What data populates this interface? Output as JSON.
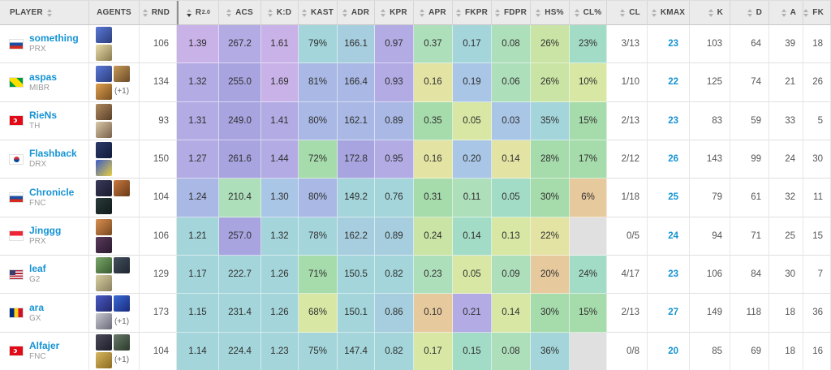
{
  "colors": {
    "link_blue": "#1593d4",
    "header_bg": "#ebebeb",
    "header_text": "#4a4a4a"
  },
  "palette": {
    "pu1": "#c8b2e8",
    "pu2": "#b2abe4",
    "pu3": "#a8a4e0",
    "bl1": "#a9b8e4",
    "bl2": "#a9c6e6",
    "cy1": "#a3d5da",
    "cy2": "#a7cede",
    "tg": "#a3dcc6",
    "gr1": "#a6dcab",
    "gr2": "#aedfbb",
    "yg1": "#c9e4a4",
    "yg2": "#d8e7a4",
    "ye": "#e3e3a4",
    "or": "#e7c99e",
    "gy": "#e0e0e0"
  },
  "table": {
    "columns": [
      {
        "key": "player",
        "label": "PLAYER",
        "carets": "after"
      },
      {
        "key": "agents",
        "label": "AGENTS",
        "carets": "none"
      },
      {
        "key": "rnd",
        "label": "RND",
        "carets": "before"
      },
      {
        "key": "r2",
        "label": "R",
        "sup": "2.0",
        "carets": "before",
        "active": true
      },
      {
        "key": "acs",
        "label": "ACS",
        "carets": "before"
      },
      {
        "key": "kd",
        "label": "K:D",
        "carets": "before"
      },
      {
        "key": "kast",
        "label": "KAST",
        "carets": "before"
      },
      {
        "key": "adr",
        "label": "ADR",
        "carets": "before"
      },
      {
        "key": "kpr",
        "label": "KPR",
        "carets": "before"
      },
      {
        "key": "apr",
        "label": "APR",
        "carets": "before"
      },
      {
        "key": "fkpr",
        "label": "FKPR",
        "carets": "before"
      },
      {
        "key": "fdpr",
        "label": "FDPR",
        "carets": "before"
      },
      {
        "key": "hs",
        "label": "HS%",
        "carets": "before"
      },
      {
        "key": "clp",
        "label": "CL%",
        "carets": "before"
      },
      {
        "key": "cl",
        "label": "CL",
        "carets": "before"
      },
      {
        "key": "kmax",
        "label": "KMAX",
        "carets": "before"
      },
      {
        "key": "k",
        "label": "K",
        "carets": "before"
      },
      {
        "key": "d",
        "label": "D",
        "carets": "before"
      },
      {
        "key": "a",
        "label": "A",
        "carets": "before"
      },
      {
        "key": "fk",
        "label": "FK",
        "carets": "before"
      }
    ],
    "rows": [
      {
        "player": "something",
        "team": "PRX",
        "flag": "ru",
        "agents": {
          "stack": true,
          "extra": "",
          "icons": [
            [
              "#5a78d8",
              "#2c3e7a"
            ],
            [
              "#e8dca8",
              "#8a7a50"
            ]
          ]
        },
        "rnd": "106",
        "stats": [
          [
            "1.39",
            "pu1"
          ],
          [
            "267.2",
            "pu2"
          ],
          [
            "1.61",
            "pu1"
          ],
          [
            "79%",
            "cy1"
          ],
          [
            "166.1",
            "cy2"
          ],
          [
            "0.97",
            "pu2"
          ],
          [
            "0.37",
            "gr2"
          ],
          [
            "0.17",
            "cy1"
          ],
          [
            "0.08",
            "gr2"
          ],
          [
            "26%",
            "yg1"
          ],
          [
            "23%",
            "tg"
          ]
        ],
        "tail": [
          "3/13",
          "23",
          "103",
          "64",
          "39",
          "18"
        ]
      },
      {
        "player": "aspas",
        "team": "MIBR",
        "flag": "br",
        "agents": {
          "stack": false,
          "extra": "(+1)",
          "icons": [
            [
              "#5a78d8",
              "#2c3e7a"
            ],
            [
              "#c89a58",
              "#6a4a28"
            ],
            [
              "#e0a050",
              "#7a5020"
            ]
          ]
        },
        "rnd": "134",
        "stats": [
          [
            "1.32",
            "pu2"
          ],
          [
            "255.0",
            "pu3"
          ],
          [
            "1.69",
            "pu1"
          ],
          [
            "81%",
            "bl1"
          ],
          [
            "166.4",
            "bl1"
          ],
          [
            "0.93",
            "pu2"
          ],
          [
            "0.16",
            "ye"
          ],
          [
            "0.19",
            "bl2"
          ],
          [
            "0.06",
            "gr2"
          ],
          [
            "26%",
            "yg1"
          ],
          [
            "10%",
            "yg2"
          ]
        ],
        "tail": [
          "1/10",
          "22",
          "125",
          "74",
          "21",
          "26"
        ]
      },
      {
        "player": "RieNs",
        "team": "TH",
        "flag": "tr",
        "agents": {
          "stack": true,
          "extra": "",
          "icons": [
            [
              "#b08a60",
              "#5a4028"
            ],
            [
              "#d8c8a8",
              "#786048"
            ]
          ]
        },
        "rnd": "93",
        "stats": [
          [
            "1.31",
            "pu2"
          ],
          [
            "249.0",
            "pu3"
          ],
          [
            "1.41",
            "pu2"
          ],
          [
            "80%",
            "bl1"
          ],
          [
            "162.1",
            "bl1"
          ],
          [
            "0.89",
            "bl1"
          ],
          [
            "0.35",
            "gr1"
          ],
          [
            "0.05",
            "yg2"
          ],
          [
            "0.03",
            "bl2"
          ],
          [
            "35%",
            "cy1"
          ],
          [
            "15%",
            "gr1"
          ]
        ],
        "tail": [
          "2/13",
          "23",
          "83",
          "59",
          "33",
          "5"
        ]
      },
      {
        "player": "Flashback",
        "team": "DRX",
        "flag": "kr",
        "agents": {
          "stack": true,
          "extra": "",
          "icons": [
            [
              "#2c3a6a",
              "#101a3a"
            ],
            [
              "#3a5ac8",
              "#e8d040"
            ]
          ]
        },
        "rnd": "150",
        "stats": [
          [
            "1.27",
            "pu2"
          ],
          [
            "261.6",
            "pu3"
          ],
          [
            "1.44",
            "pu2"
          ],
          [
            "72%",
            "gr1"
          ],
          [
            "172.8",
            "pu3"
          ],
          [
            "0.95",
            "pu2"
          ],
          [
            "0.16",
            "ye"
          ],
          [
            "0.20",
            "bl2"
          ],
          [
            "0.14",
            "ye"
          ],
          [
            "28%",
            "gr1"
          ],
          [
            "17%",
            "gr1"
          ]
        ],
        "tail": [
          "2/12",
          "26",
          "143",
          "99",
          "24",
          "30"
        ]
      },
      {
        "player": "Chronicle",
        "team": "FNC",
        "flag": "ru",
        "agents": {
          "stack": false,
          "extra": "",
          "icons": [
            [
              "#3a3a5a",
              "#1a1a2e"
            ],
            [
              "#c87840",
              "#6a3a18"
            ],
            [
              "#2a3a3a",
              "#101a1a"
            ]
          ]
        },
        "rnd": "104",
        "stats": [
          [
            "1.24",
            "bl1"
          ],
          [
            "210.4",
            "gr2"
          ],
          [
            "1.30",
            "bl2"
          ],
          [
            "80%",
            "bl1"
          ],
          [
            "149.2",
            "cy1"
          ],
          [
            "0.76",
            "cy1"
          ],
          [
            "0.31",
            "gr1"
          ],
          [
            "0.11",
            "gr2"
          ],
          [
            "0.05",
            "tg"
          ],
          [
            "30%",
            "gr1"
          ],
          [
            "6%",
            "or"
          ]
        ],
        "tail": [
          "1/18",
          "25",
          "79",
          "61",
          "32",
          "11"
        ]
      },
      {
        "player": "Jinggg",
        "team": "PRX",
        "flag": "sg",
        "agents": {
          "stack": true,
          "extra": "",
          "icons": [
            [
              "#d89050",
              "#7a4820"
            ],
            [
              "#5a3a5a",
              "#2a1a2e"
            ]
          ]
        },
        "rnd": "106",
        "stats": [
          [
            "1.21",
            "cy1"
          ],
          [
            "257.0",
            "pu3"
          ],
          [
            "1.32",
            "cy1"
          ],
          [
            "78%",
            "cy1"
          ],
          [
            "162.2",
            "cy2"
          ],
          [
            "0.89",
            "cy2"
          ],
          [
            "0.24",
            "yg1"
          ],
          [
            "0.14",
            "tg"
          ],
          [
            "0.13",
            "yg2"
          ],
          [
            "22%",
            "ye"
          ],
          [
            "",
            "gy"
          ]
        ],
        "tail": [
          "0/5",
          "24",
          "94",
          "71",
          "25",
          "15"
        ]
      },
      {
        "player": "leaf",
        "team": "G2",
        "flag": "us",
        "agents": {
          "stack": false,
          "extra": "",
          "icons": [
            [
              "#7aa86a",
              "#3a5a30"
            ],
            [
              "#44505e",
              "#1e2630"
            ],
            [
              "#d8cfa0",
              "#8a8060"
            ]
          ]
        },
        "rnd": "129",
        "stats": [
          [
            "1.17",
            "cy1"
          ],
          [
            "222.7",
            "cy1"
          ],
          [
            "1.26",
            "cy1"
          ],
          [
            "71%",
            "gr1"
          ],
          [
            "150.5",
            "cy1"
          ],
          [
            "0.82",
            "cy1"
          ],
          [
            "0.23",
            "gr2"
          ],
          [
            "0.05",
            "yg2"
          ],
          [
            "0.09",
            "gr2"
          ],
          [
            "20%",
            "or"
          ],
          [
            "24%",
            "tg"
          ]
        ],
        "tail": [
          "4/17",
          "23",
          "106",
          "84",
          "30",
          "7"
        ]
      },
      {
        "player": "ara",
        "team": "GX",
        "flag": "ro",
        "agents": {
          "stack": false,
          "extra": "(+1)",
          "icons": [
            [
              "#4a5ac8",
              "#222a6a"
            ],
            [
              "#3a6ad8",
              "#1a2a7a"
            ],
            [
              "#c8c8d0",
              "#6a6a7a"
            ]
          ]
        },
        "rnd": "173",
        "stats": [
          [
            "1.15",
            "cy1"
          ],
          [
            "231.4",
            "cy1"
          ],
          [
            "1.26",
            "cy1"
          ],
          [
            "68%",
            "yg2"
          ],
          [
            "150.1",
            "cy1"
          ],
          [
            "0.86",
            "cy2"
          ],
          [
            "0.10",
            "or"
          ],
          [
            "0.21",
            "pu2"
          ],
          [
            "0.14",
            "yg2"
          ],
          [
            "30%",
            "gr1"
          ],
          [
            "15%",
            "gr1"
          ]
        ],
        "tail": [
          "2/13",
          "27",
          "149",
          "118",
          "18",
          "36"
        ]
      },
      {
        "player": "Alfajer",
        "team": "FNC",
        "flag": "tr",
        "agents": {
          "stack": false,
          "extra": "(+1)",
          "icons": [
            [
              "#4a4a5a",
              "#1e1e2a"
            ],
            [
              "#6a7a6a",
              "#2a3a2a"
            ],
            [
              "#d8b860",
              "#8a6a20"
            ]
          ]
        },
        "rnd": "104",
        "stats": [
          [
            "1.14",
            "cy1"
          ],
          [
            "224.4",
            "cy1"
          ],
          [
            "1.23",
            "cy1"
          ],
          [
            "75%",
            "cy1"
          ],
          [
            "147.4",
            "cy1"
          ],
          [
            "0.82",
            "cy1"
          ],
          [
            "0.17",
            "yg2"
          ],
          [
            "0.15",
            "tg"
          ],
          [
            "0.08",
            "gr2"
          ],
          [
            "36%",
            "cy1"
          ],
          [
            "",
            "gy"
          ]
        ],
        "tail": [
          "0/8",
          "20",
          "85",
          "69",
          "18",
          "16"
        ]
      }
    ]
  }
}
